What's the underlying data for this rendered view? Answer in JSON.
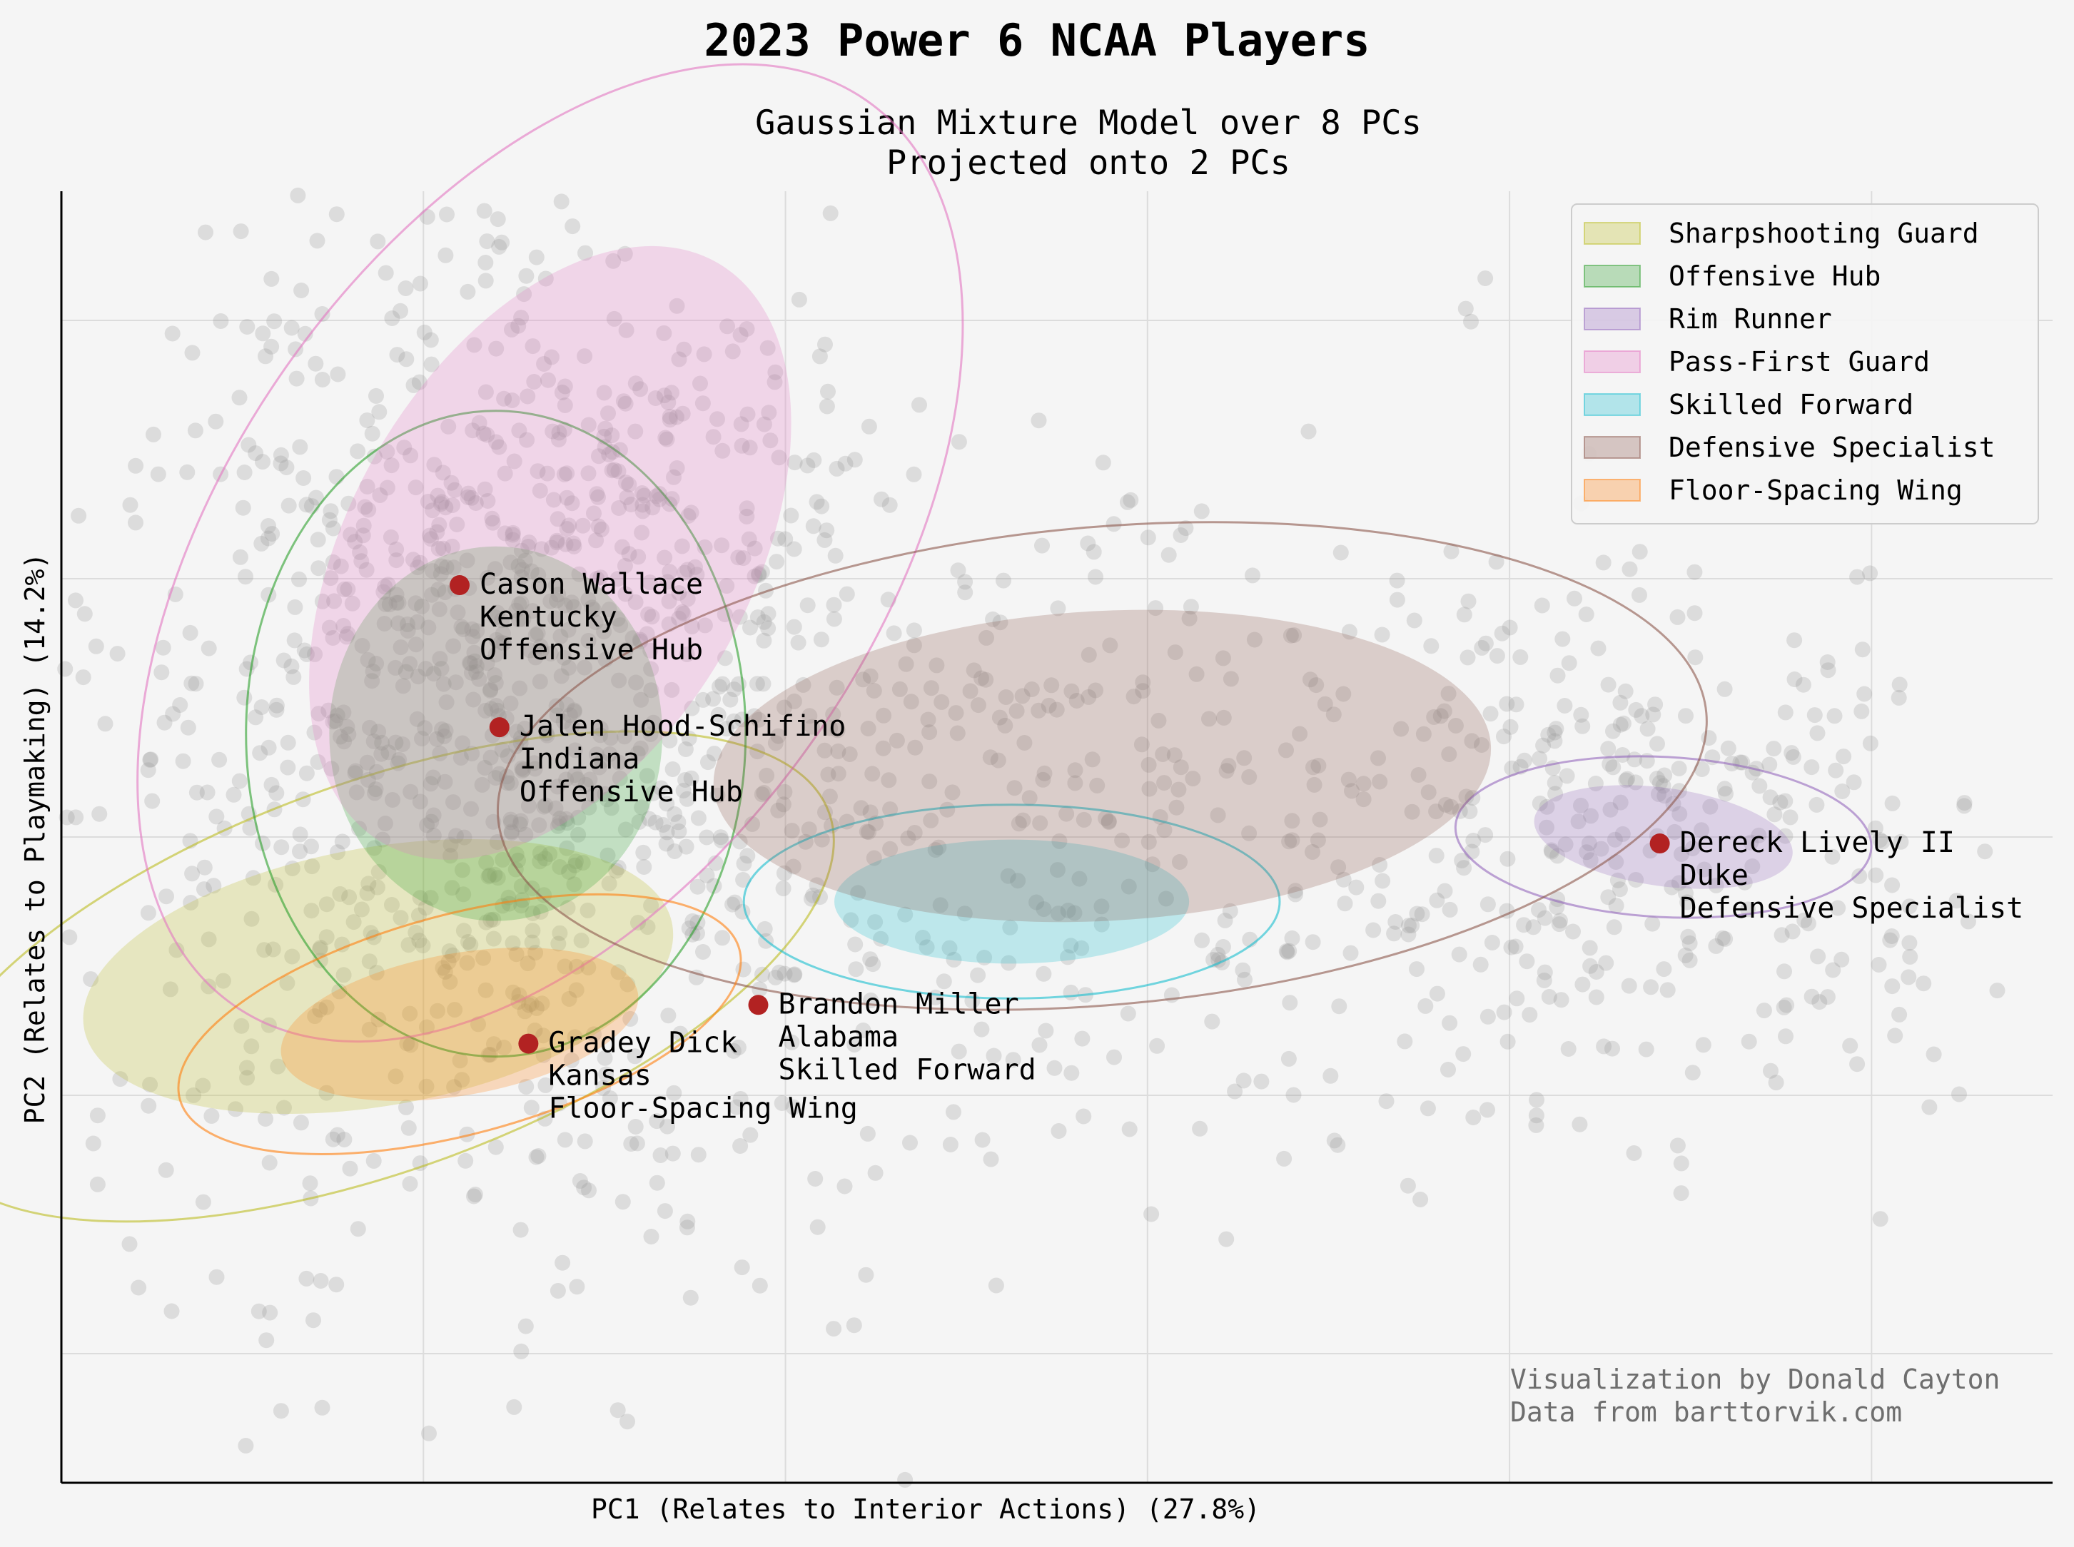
{
  "chart_data": {
    "type": "scatter",
    "title": "2023 Power 6 NCAA Players",
    "subtitle_lines": [
      "Gaussian Mixture Model over 8 PCs",
      "Projected onto 2 PCs"
    ],
    "xlabel": "PC1 (Relates to Interior Actions) (27.8%)",
    "ylabel": "PC2 (Relates to Playmaking) (14.2%)",
    "xlim": [
      -5.5,
      5.5
    ],
    "ylim": [
      -5.0,
      5.0
    ],
    "x_gridlines": [
      -3.5,
      -1.5,
      0.5,
      2.5,
      4.5
    ],
    "y_gridlines": [
      4.0,
      2.0,
      0.0,
      -2.0,
      -4.0
    ],
    "tick_labels_shown": false,
    "grid": true,
    "legend_position": "top-right",
    "background_points": {
      "color": "#999999",
      "count": 1800,
      "description_note": ""
    },
    "clusters": [
      {
        "name": "Sharpshooting Guard",
        "color": "#bcbd22",
        "center": [
          -3.75,
          -1.08
        ],
        "inner": [
          1.65,
          1.0,
          10
        ],
        "outer": [
          2.65,
          1.5,
          20
        ]
      },
      {
        "name": "Offensive Hub",
        "color": "#2ca02c",
        "center": [
          -3.1,
          0.8
        ],
        "inner": [
          0.92,
          1.45,
          0
        ],
        "outer": [
          1.38,
          2.5,
          0
        ]
      },
      {
        "name": "Rim Runner",
        "color": "#9467bd",
        "center": [
          3.35,
          0.0
        ],
        "inner": [
          0.72,
          0.38,
          -8
        ],
        "outer": [
          1.15,
          0.62,
          -3
        ]
      },
      {
        "name": "Pass-First Guard",
        "color": "#e377c2",
        "center": [
          -2.8,
          2.2
        ],
        "inner": [
          1.85,
          1.55,
          60
        ],
        "outer": [
          3.05,
          2.5,
          55
        ]
      },
      {
        "name": "Skilled Forward",
        "color": "#17becf",
        "center": [
          -0.25,
          -0.5
        ],
        "inner": [
          0.98,
          0.48,
          0
        ],
        "outer": [
          1.48,
          0.75,
          0
        ]
      },
      {
        "name": "Defensive Specialist",
        "color": "#8c564b",
        "center": [
          0.25,
          0.55
        ],
        "inner": [
          2.15,
          1.2,
          3
        ],
        "outer": [
          3.35,
          1.85,
          5
        ]
      },
      {
        "name": "Floor-Spacing Wing",
        "color": "#ff7f0e",
        "center": [
          -3.3,
          -1.45
        ],
        "inner": [
          1.0,
          0.55,
          10
        ],
        "outer": [
          1.6,
          0.85,
          15
        ]
      }
    ],
    "highlighted_players": [
      {
        "x": -3.3,
        "y": 1.95,
        "lines": [
          "Cason Wallace",
          "Kentucky",
          "Offensive Hub"
        ]
      },
      {
        "x": -3.08,
        "y": 0.85,
        "lines": [
          "Jalen Hood-Schifino",
          "Indiana",
          "Offensive Hub"
        ]
      },
      {
        "x": -2.92,
        "y": -1.6,
        "lines": [
          "Gradey Dick",
          "Kansas",
          "Floor-Spacing Wing"
        ]
      },
      {
        "x": -1.65,
        "y": -1.3,
        "lines": [
          "Brandon Miller",
          "Alabama",
          "Skilled Forward"
        ]
      },
      {
        "x": 3.33,
        "y": -0.05,
        "lines": [
          "Dereck Lively II",
          "Duke",
          "Defensive Specialist"
        ]
      }
    ],
    "highlight_color": "#b22222"
  },
  "credits": [
    "Visualization by Donald Cayton",
    "Data from barttorvik.com"
  ]
}
